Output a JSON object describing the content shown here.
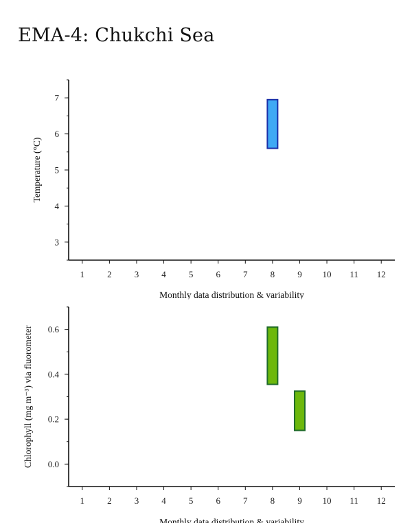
{
  "page": {
    "title": "EMA-4: Chukchi Sea"
  },
  "chart_data": [
    {
      "type": "bar",
      "subtype": "floating-range",
      "title": "",
      "xlabel": "Monthly data distribution & variability",
      "ylabel": "Temperature (°C)",
      "x_ticks": [
        1,
        2,
        3,
        4,
        5,
        6,
        7,
        8,
        9,
        10,
        11,
        12
      ],
      "y_ticks": [
        3,
        4,
        5,
        6,
        7
      ],
      "xlim": [
        0.5,
        12.5
      ],
      "ylim": [
        2.5,
        7.5
      ],
      "series": [
        {
          "color_fill": "#3fa9f5",
          "color_stroke": "#1b2fa8",
          "ranges": [
            {
              "month": 8,
              "low": 5.6,
              "high": 6.95
            }
          ]
        }
      ]
    },
    {
      "type": "bar",
      "subtype": "floating-range",
      "title": "",
      "xlabel": "Monthly data distribution & variability",
      "ylabel": "Chlorophyll (mg m⁻³) via fluorometer",
      "x_ticks": [
        1,
        2,
        3,
        4,
        5,
        6,
        7,
        8,
        9,
        10,
        11,
        12
      ],
      "y_ticks": [
        0.0,
        0.2,
        0.4,
        0.6
      ],
      "y_tick_labels": [
        "0.0",
        "0.2",
        "0.4",
        "0.6"
      ],
      "xlim": [
        0.5,
        12.5
      ],
      "ylim": [
        -0.1,
        0.7
      ],
      "series": [
        {
          "color_fill": "#6cb80c",
          "color_stroke": "#1f6b2a",
          "ranges": [
            {
              "month": 8,
              "low": 0.355,
              "high": 0.61
            },
            {
              "month": 9,
              "low": 0.15,
              "high": 0.325
            }
          ]
        }
      ]
    }
  ]
}
